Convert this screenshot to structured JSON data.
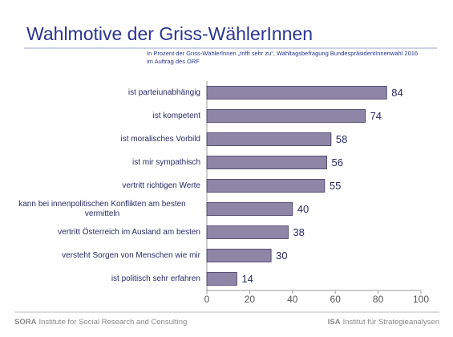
{
  "chart_data": {
    "type": "hbar",
    "title": "Wahlmotive der Griss-WählerInnen",
    "subtitle": [
      "In Prozent der Griss-WählerInnen „trifft sehr zu“, Wahltagsbefragung BundespräsidentInnenwahl 2016",
      "im Auftrag des ORF"
    ],
    "categories": [
      "ist parteiunabhängig",
      "ist kompetent",
      "ist moralisches Vorbild",
      "ist mir sympathisch",
      "vertritt richtigen Werte",
      "kann bei innenpolitischen Konflikten am besten vermitteln",
      "vertritt Österreich im Ausland am besten",
      "versteht Sorgen von Menschen wie mir",
      "ist politisch sehr erfahren"
    ],
    "values": [
      84,
      74,
      58,
      56,
      55,
      40,
      38,
      30,
      14
    ],
    "color": "#8e86a6",
    "xlim": [
      0,
      100
    ],
    "xticks": [
      0,
      20,
      40,
      60,
      80,
      100
    ]
  },
  "footer": {
    "left_brand": "SORA",
    "left_text": "Institute for Social Research and Consulting",
    "right_brand": "ISA",
    "right_text": "Institut für Strategieanalysen"
  }
}
